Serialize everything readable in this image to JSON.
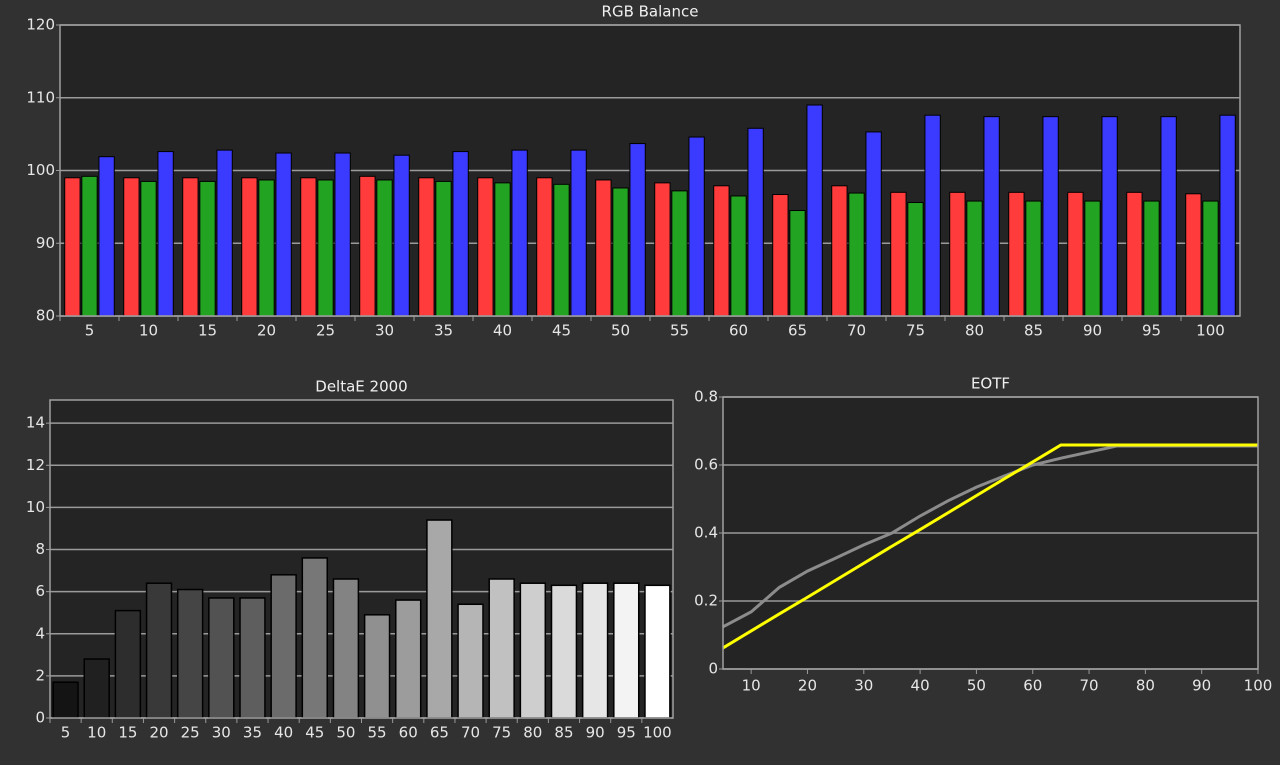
{
  "chart_data": [
    {
      "type": "bar",
      "title": "RGB Balance",
      "categories": [
        "5",
        "10",
        "15",
        "20",
        "25",
        "30",
        "35",
        "40",
        "45",
        "50",
        "55",
        "60",
        "65",
        "70",
        "75",
        "80",
        "85",
        "90",
        "95",
        "100"
      ],
      "series": [
        {
          "color": "#ff3b3b",
          "values": [
            99,
            99,
            99,
            99,
            99,
            99.2,
            99,
            99,
            99,
            98.7,
            98.3,
            97.9,
            96.7,
            97.9,
            97,
            97,
            97,
            97,
            97,
            96.8
          ]
        },
        {
          "color": "#22a322",
          "values": [
            99.2,
            98.5,
            98.5,
            98.7,
            98.7,
            98.7,
            98.5,
            98.3,
            98.1,
            97.6,
            97.2,
            96.5,
            94.5,
            96.9,
            95.6,
            95.8,
            95.8,
            95.8,
            95.8,
            95.8
          ]
        },
        {
          "color": "#3b3bff",
          "values": [
            101.9,
            102.6,
            102.8,
            102.4,
            102.4,
            102.1,
            102.6,
            102.8,
            102.8,
            103.7,
            104.6,
            105.8,
            109,
            105.3,
            107.6,
            107.4,
            107.4,
            107.4,
            107.4,
            107.6
          ]
        }
      ],
      "ylim": [
        80,
        120
      ],
      "yticks": [
        80,
        90,
        100,
        110,
        120
      ],
      "grid": true
    },
    {
      "type": "bar",
      "title": "DeltaE 2000",
      "categories": [
        "5",
        "10",
        "15",
        "20",
        "25",
        "30",
        "35",
        "40",
        "45",
        "50",
        "55",
        "60",
        "65",
        "70",
        "75",
        "80",
        "85",
        "90",
        "95",
        "100"
      ],
      "values": [
        1.7,
        2.8,
        5.1,
        6.4,
        6.1,
        5.7,
        5.7,
        6.8,
        7.6,
        6.6,
        4.9,
        5.6,
        9.4,
        5.4,
        6.6,
        6.4,
        6.3,
        6.4,
        6.4,
        6.3
      ],
      "ylim": [
        0,
        15.1
      ],
      "yticks": [
        0,
        2,
        4,
        6,
        8,
        10,
        12,
        14
      ],
      "grid": true
    },
    {
      "type": "line",
      "title": "EOTF",
      "x": [
        5,
        10,
        15,
        20,
        25,
        30,
        35,
        40,
        45,
        50,
        55,
        60,
        65,
        70,
        75,
        80,
        85,
        90,
        95,
        100
      ],
      "series": [
        {
          "color": "#8c8c8c",
          "values": [
            0.124,
            0.168,
            0.24,
            0.288,
            0.326,
            0.365,
            0.4,
            0.45,
            0.495,
            0.535,
            0.568,
            0.6,
            0.62,
            0.638,
            0.656,
            0.656,
            0.656,
            0.656,
            0.656,
            0.656
          ]
        },
        {
          "color": "#ffff00",
          "values": [
            0.062,
            0.112,
            0.162,
            0.211,
            0.261,
            0.311,
            0.361,
            0.41,
            0.46,
            0.51,
            0.56,
            0.609,
            0.659,
            0.659,
            0.659,
            0.659,
            0.659,
            0.659,
            0.659,
            0.659
          ]
        }
      ],
      "xlim": [
        5,
        100
      ],
      "xticks": [
        10,
        20,
        30,
        40,
        50,
        60,
        70,
        80,
        90,
        100
      ],
      "ylim": [
        0,
        0.8
      ],
      "yticks": [
        0,
        0.2,
        0.4,
        0.6,
        0.8
      ],
      "grid": true
    }
  ]
}
